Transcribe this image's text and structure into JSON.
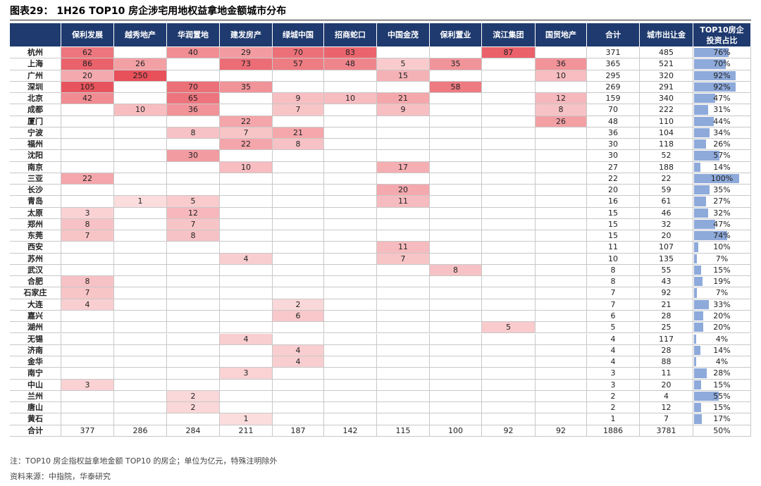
{
  "header": {
    "title": "图表29：  1H26 TOP10 房企涉宅用地权益拿地金额城市分布"
  },
  "table": {
    "columns": [
      null,
      "保利发展",
      "越秀地产",
      "华润置地",
      "建发房产",
      "绿城中国",
      "招商蛇口",
      "中国金茂",
      "保利置业",
      "滨江集团",
      "国贸地产",
      "合计",
      "城市出让金",
      "TOP10房企\n投资占比"
    ],
    "rows": [
      [
        "杭州",
        62,
        null,
        40,
        29,
        70,
        83,
        null,
        null,
        87,
        null,
        371,
        485,
        "76%"
      ],
      [
        "上海",
        86,
        26,
        null,
        73,
        57,
        48,
        5,
        35,
        null,
        36,
        365,
        521,
        "70%"
      ],
      [
        "广州",
        20,
        250,
        null,
        null,
        null,
        null,
        15,
        null,
        null,
        10,
        295,
        320,
        "92%"
      ],
      [
        "深圳",
        105,
        null,
        70,
        35,
        null,
        null,
        null,
        58,
        null,
        null,
        269,
        291,
        "92%"
      ],
      [
        "北京",
        42,
        null,
        65,
        null,
        9,
        10,
        21,
        null,
        null,
        12,
        159,
        340,
        "47%"
      ],
      [
        "成都",
        null,
        10,
        36,
        null,
        7,
        null,
        9,
        null,
        null,
        8,
        70,
        222,
        "31%"
      ],
      [
        "厦门",
        null,
        null,
        null,
        22,
        null,
        null,
        null,
        null,
        null,
        26,
        48,
        110,
        "44%"
      ],
      [
        "宁波",
        null,
        null,
        8,
        7,
        21,
        null,
        null,
        null,
        null,
        null,
        36,
        104,
        "34%"
      ],
      [
        "福州",
        null,
        null,
        null,
        22,
        8,
        null,
        null,
        null,
        null,
        null,
        30,
        118,
        "26%"
      ],
      [
        "沈阳",
        null,
        null,
        30,
        null,
        null,
        null,
        null,
        null,
        null,
        null,
        30,
        52,
        "57%"
      ],
      [
        "南京",
        null,
        null,
        null,
        10,
        null,
        null,
        17,
        null,
        null,
        null,
        27,
        188,
        "14%"
      ],
      [
        "三亚",
        22,
        null,
        null,
        null,
        null,
        null,
        null,
        null,
        null,
        null,
        22,
        22,
        "100%"
      ],
      [
        "长沙",
        null,
        null,
        null,
        null,
        null,
        null,
        20,
        null,
        null,
        null,
        20,
        59,
        "35%"
      ],
      [
        "青岛",
        null,
        1,
        5,
        null,
        null,
        null,
        11,
        null,
        null,
        null,
        16,
        61,
        "27%"
      ],
      [
        "太原",
        3,
        null,
        12,
        null,
        null,
        null,
        null,
        null,
        null,
        null,
        15,
        46,
        "32%"
      ],
      [
        "郑州",
        8,
        null,
        7,
        null,
        null,
        null,
        null,
        null,
        null,
        null,
        15,
        32,
        "47%"
      ],
      [
        "东莞",
        7,
        null,
        8,
        null,
        null,
        null,
        null,
        null,
        null,
        null,
        15,
        20,
        "74%"
      ],
      [
        "西安",
        null,
        null,
        null,
        null,
        null,
        null,
        11,
        null,
        null,
        null,
        11,
        107,
        "10%"
      ],
      [
        "苏州",
        null,
        null,
        null,
        4,
        null,
        null,
        7,
        null,
        null,
        null,
        10,
        135,
        "7%"
      ],
      [
        "武汉",
        null,
        null,
        null,
        null,
        null,
        null,
        null,
        8,
        null,
        null,
        8,
        55,
        "15%"
      ],
      [
        "合肥",
        8,
        null,
        null,
        null,
        null,
        null,
        null,
        null,
        null,
        null,
        8,
        43,
        "19%"
      ],
      [
        "石家庄",
        7,
        null,
        null,
        null,
        null,
        null,
        null,
        null,
        null,
        null,
        7,
        92,
        "7%"
      ],
      [
        "大连",
        4,
        null,
        null,
        null,
        2,
        null,
        null,
        null,
        null,
        null,
        7,
        21,
        "33%"
      ],
      [
        "嘉兴",
        null,
        null,
        null,
        null,
        6,
        null,
        null,
        null,
        null,
        null,
        6,
        28,
        "20%"
      ],
      [
        "湖州",
        null,
        null,
        null,
        null,
        null,
        null,
        null,
        null,
        5,
        null,
        5,
        25,
        "20%"
      ],
      [
        "无锡",
        null,
        null,
        null,
        4,
        null,
        null,
        null,
        null,
        null,
        null,
        4,
        117,
        "4%"
      ],
      [
        "济南",
        null,
        null,
        null,
        null,
        4,
        null,
        null,
        null,
        null,
        null,
        4,
        28,
        "14%"
      ],
      [
        "金华",
        null,
        null,
        null,
        null,
        4,
        null,
        null,
        null,
        null,
        null,
        4,
        88,
        "4%"
      ],
      [
        "南宁",
        null,
        null,
        null,
        3,
        null,
        null,
        null,
        null,
        null,
        null,
        3,
        11,
        "28%"
      ],
      [
        "中山",
        3,
        null,
        null,
        null,
        null,
        null,
        null,
        null,
        null,
        null,
        3,
        20,
        "15%"
      ],
      [
        "兰州",
        null,
        null,
        2,
        null,
        null,
        null,
        null,
        null,
        null,
        null,
        2,
        4,
        "55%"
      ],
      [
        "唐山",
        null,
        null,
        2,
        null,
        null,
        null,
        null,
        null,
        null,
        null,
        2,
        12,
        "15%"
      ],
      [
        "黄石",
        null,
        null,
        null,
        1,
        null,
        null,
        null,
        null,
        null,
        null,
        1,
        7,
        "17%"
      ]
    ],
    "total": [
      "合计",
      377,
      286,
      284,
      211,
      187,
      142,
      115,
      100,
      92,
      92,
      1886,
      3781,
      "50%"
    ]
  },
  "notes": [
    "注：TOP10 房企指权益拿地金额 TOP10 的房企；单位为亿元，特殊注明除外",
    "资料来源：中指院，华泰研究"
  ]
}
